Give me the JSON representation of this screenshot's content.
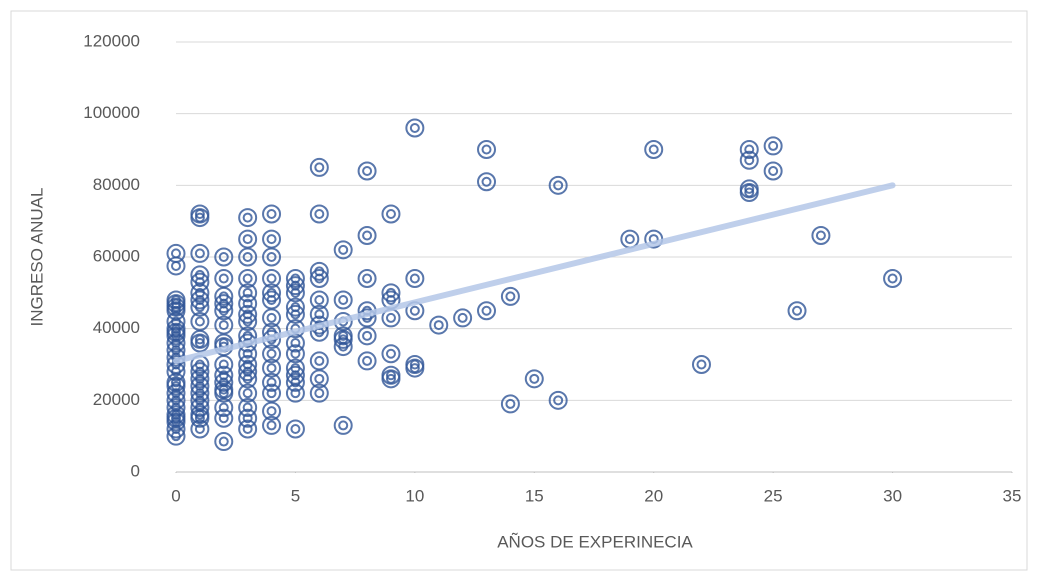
{
  "chart_data": {
    "type": "scatter",
    "x_label": "AÑOS DE EXPERINECIA",
    "y_label": "INGRESO ANUAL",
    "xlim": [
      0,
      35
    ],
    "xticks": [
      0,
      5,
      10,
      15,
      20,
      25,
      30,
      35
    ],
    "ylim": [
      0,
      120000
    ],
    "yticks": [
      0,
      20000,
      40000,
      60000,
      80000,
      100000,
      120000
    ],
    "grid": true,
    "color": "#2f5597",
    "trendline": {
      "color": "#b4c7e7",
      "x": [
        0,
        30
      ],
      "values": [
        31000,
        80000
      ]
    },
    "x": [
      0,
      0,
      0,
      0,
      0,
      0,
      0,
      0,
      0,
      0,
      0,
      0,
      0,
      0,
      0,
      0,
      0,
      0,
      0,
      0,
      0,
      0,
      0,
      0,
      0,
      1,
      1,
      1,
      1,
      1,
      1,
      1,
      1,
      1,
      1,
      1,
      1,
      1,
      1,
      1,
      1,
      1,
      1,
      1,
      1,
      1,
      2,
      2,
      2,
      2,
      2,
      2,
      2,
      2,
      2,
      2,
      2,
      2,
      2,
      2,
      2,
      2,
      3,
      3,
      3,
      3,
      3,
      3,
      3,
      3,
      3,
      3,
      3,
      3,
      3,
      3,
      3,
      3,
      3,
      3,
      4,
      4,
      4,
      4,
      4,
      4,
      4,
      4,
      4,
      4,
      4,
      4,
      4,
      4,
      4,
      5,
      5,
      5,
      5,
      5,
      5,
      5,
      5,
      5,
      5,
      5,
      5,
      5,
      6,
      6,
      6,
      6,
      6,
      6,
      6,
      6,
      6,
      6,
      6,
      7,
      7,
      7,
      7,
      7,
      7,
      7,
      8,
      8,
      8,
      8,
      8,
      8,
      8,
      9,
      9,
      9,
      9,
      9,
      9,
      9,
      10,
      10,
      10,
      10,
      10,
      11,
      12,
      13,
      13,
      13,
      14,
      14,
      15,
      16,
      16,
      19,
      20,
      20,
      22,
      24,
      24,
      24,
      24,
      25,
      25,
      26,
      27,
      30
    ],
    "values": [
      61000,
      57500,
      48000,
      47000,
      46000,
      45000,
      42000,
      40000,
      39000,
      38000,
      36000,
      34000,
      32000,
      30000,
      28000,
      25000,
      24000,
      22000,
      20000,
      18000,
      16000,
      15000,
      14000,
      12000,
      10000,
      72000,
      71000,
      61000,
      55000,
      53000,
      50000,
      48000,
      46000,
      42000,
      37000,
      36000,
      30000,
      28000,
      26000,
      24000,
      22000,
      20000,
      18000,
      16000,
      15000,
      12000,
      60000,
      54000,
      49000,
      47000,
      45000,
      41000,
      36000,
      35000,
      30000,
      27000,
      25000,
      23000,
      22000,
      18000,
      15000,
      8500,
      71000,
      65000,
      60000,
      54000,
      50000,
      47000,
      44000,
      42000,
      38000,
      36000,
      33000,
      30000,
      28000,
      26000,
      22000,
      18000,
      15000,
      12000,
      72000,
      65000,
      60000,
      54000,
      50000,
      48000,
      43000,
      39000,
      37000,
      33000,
      29000,
      25000,
      22000,
      17000,
      13000,
      54000,
      52000,
      50000,
      46000,
      44000,
      40000,
      36000,
      33000,
      29000,
      27000,
      25000,
      22000,
      12000,
      85000,
      72000,
      56000,
      54000,
      48000,
      44000,
      41000,
      39000,
      31000,
      26000,
      22000,
      62000,
      48000,
      42000,
      38000,
      37000,
      35000,
      13000,
      84000,
      66000,
      54000,
      45000,
      43000,
      38000,
      31000,
      72000,
      50000,
      48000,
      43000,
      33000,
      27000,
      26000,
      96000,
      54000,
      45000,
      30000,
      29000,
      41000,
      43000,
      90000,
      81000,
      45000,
      49000,
      19000,
      26000,
      80000,
      20000,
      65000,
      90000,
      65000,
      30000,
      90000,
      87000,
      79000,
      78000,
      91000,
      84000,
      45000,
      66000,
      54000
    ]
  }
}
